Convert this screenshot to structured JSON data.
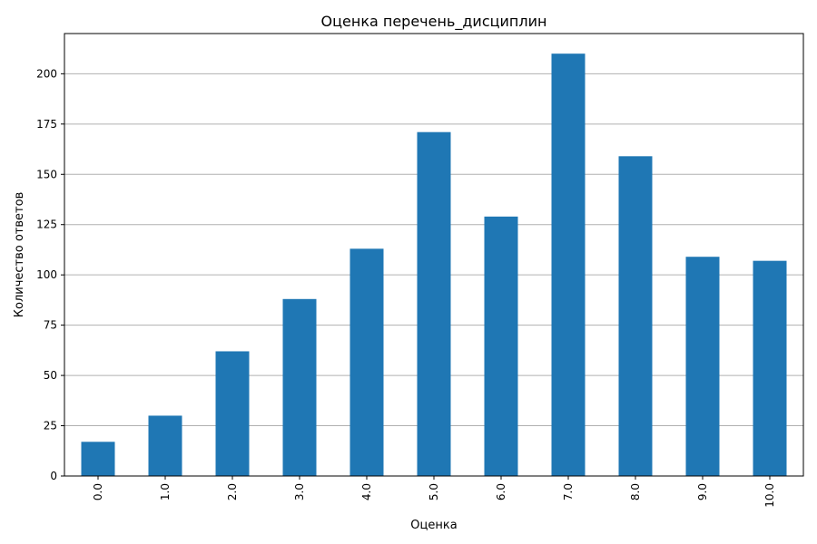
{
  "chart_data": {
    "type": "bar",
    "title": "Оценка перечень_дисциплин",
    "xlabel": "Оценка",
    "ylabel": "Количество ответов",
    "categories": [
      "0.0",
      "1.0",
      "2.0",
      "3.0",
      "4.0",
      "5.0",
      "6.0",
      "7.0",
      "8.0",
      "9.0",
      "10.0"
    ],
    "values": [
      17,
      30,
      62,
      88,
      113,
      171,
      129,
      210,
      159,
      109,
      107
    ],
    "ylim": [
      0,
      220
    ],
    "yticks": [
      0,
      25,
      50,
      75,
      100,
      125,
      150,
      175,
      200
    ],
    "grid": "horizontal",
    "x_tick_rotation": "vertical",
    "bar_color": "#1f77b4"
  }
}
